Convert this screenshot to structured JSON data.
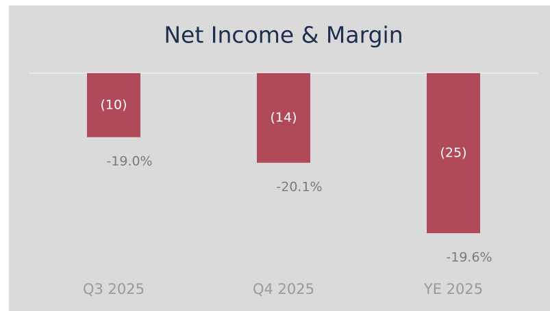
{
  "chart_data": {
    "type": "bar",
    "title": "Net Income & Margin",
    "categories": [
      "Q3 2025",
      "Q4 2025",
      "YE 2025"
    ],
    "values": [
      -10,
      -14,
      -25
    ],
    "value_labels": [
      "(10)",
      "(14)",
      "(25)"
    ],
    "color": "#b14a58",
    "margin": {
      "values": [
        -19.0,
        -20.1,
        -19.6
      ],
      "value_labels": [
        "-19.0%",
        "-20.1%",
        "-19.6%"
      ]
    },
    "ylim": [
      -30,
      0
    ]
  }
}
